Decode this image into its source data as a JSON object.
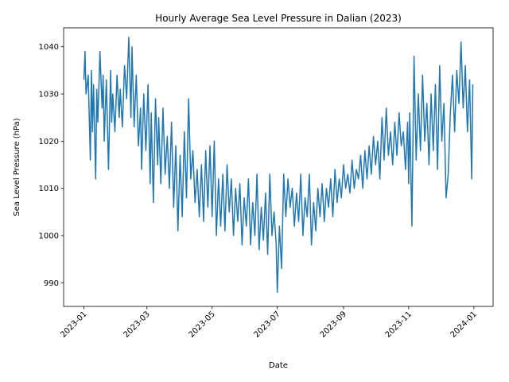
{
  "chart_data": {
    "type": "line",
    "title": "Hourly Average Sea Level Pressure in Dalian (2023)",
    "xlabel": "Date",
    "ylabel": "Sea Level Pressure (hPa)",
    "xlim": [
      "2022-12-13",
      "2024-01-19"
    ],
    "ylim": [
      985,
      1044
    ],
    "grid": false,
    "x_ticks": [
      "2023-01",
      "2023-03",
      "2023-05",
      "2023-07",
      "2023-09",
      "2023-11",
      "2024-01"
    ],
    "y_ticks": [
      990,
      1000,
      1010,
      1020,
      1030,
      1040
    ],
    "line_color": "#1f77b4",
    "series": [
      {
        "x": [
          "2023-01-01",
          "2023-01-02",
          "2023-01-03",
          "2023-01-05",
          "2023-01-07",
          "2023-01-08",
          "2023-01-09",
          "2023-01-10",
          "2023-01-12",
          "2023-01-13",
          "2023-01-14",
          "2023-01-16",
          "2023-01-18",
          "2023-01-19",
          "2023-01-20",
          "2023-01-22",
          "2023-01-24",
          "2023-01-26",
          "2023-01-27",
          "2023-01-28",
          "2023-01-30",
          "2023-02-01",
          "2023-02-03",
          "2023-02-04",
          "2023-02-06",
          "2023-02-08",
          "2023-02-10",
          "2023-02-12",
          "2023-02-14",
          "2023-02-15",
          "2023-02-17",
          "2023-02-19",
          "2023-02-21",
          "2023-02-23",
          "2023-02-24",
          "2023-02-26",
          "2023-02-28",
          "2023-03-02",
          "2023-03-04",
          "2023-03-05",
          "2023-03-07",
          "2023-03-09",
          "2023-03-11",
          "2023-03-12",
          "2023-03-14",
          "2023-03-16",
          "2023-03-18",
          "2023-03-20",
          "2023-03-22",
          "2023-03-24",
          "2023-03-26",
          "2023-03-28",
          "2023-03-30",
          "2023-04-01",
          "2023-04-03",
          "2023-04-05",
          "2023-04-07",
          "2023-04-09",
          "2023-04-11",
          "2023-04-13",
          "2023-04-15",
          "2023-04-17",
          "2023-04-19",
          "2023-04-21",
          "2023-04-23",
          "2023-04-25",
          "2023-04-27",
          "2023-04-29",
          "2023-05-01",
          "2023-05-03",
          "2023-05-05",
          "2023-05-07",
          "2023-05-09",
          "2023-05-11",
          "2023-05-13",
          "2023-05-15",
          "2023-05-17",
          "2023-05-19",
          "2023-05-21",
          "2023-05-23",
          "2023-05-25",
          "2023-05-27",
          "2023-05-29",
          "2023-05-31",
          "2023-06-02",
          "2023-06-04",
          "2023-06-06",
          "2023-06-08",
          "2023-06-10",
          "2023-06-12",
          "2023-06-14",
          "2023-06-16",
          "2023-06-18",
          "2023-06-20",
          "2023-06-22",
          "2023-06-24",
          "2023-06-26",
          "2023-06-28",
          "2023-06-30",
          "2023-07-01",
          "2023-07-03",
          "2023-07-05",
          "2023-07-07",
          "2023-07-09",
          "2023-07-11",
          "2023-07-13",
          "2023-07-15",
          "2023-07-17",
          "2023-07-19",
          "2023-07-21",
          "2023-07-23",
          "2023-07-25",
          "2023-07-27",
          "2023-07-29",
          "2023-07-31",
          "2023-08-02",
          "2023-08-04",
          "2023-08-06",
          "2023-08-08",
          "2023-08-10",
          "2023-08-12",
          "2023-08-14",
          "2023-08-16",
          "2023-08-18",
          "2023-08-20",
          "2023-08-22",
          "2023-08-24",
          "2023-08-26",
          "2023-08-28",
          "2023-08-30",
          "2023-09-01",
          "2023-09-03",
          "2023-09-05",
          "2023-09-07",
          "2023-09-09",
          "2023-09-11",
          "2023-09-13",
          "2023-09-15",
          "2023-09-17",
          "2023-09-19",
          "2023-09-21",
          "2023-09-23",
          "2023-09-25",
          "2023-09-27",
          "2023-09-29",
          "2023-10-01",
          "2023-10-03",
          "2023-10-05",
          "2023-10-07",
          "2023-10-09",
          "2023-10-11",
          "2023-10-13",
          "2023-10-15",
          "2023-10-17",
          "2023-10-19",
          "2023-10-21",
          "2023-10-23",
          "2023-10-25",
          "2023-10-27",
          "2023-10-29",
          "2023-10-31",
          "2023-11-01",
          "2023-11-02",
          "2023-11-04",
          "2023-11-06",
          "2023-11-08",
          "2023-11-10",
          "2023-11-12",
          "2023-11-14",
          "2023-11-16",
          "2023-11-18",
          "2023-11-20",
          "2023-11-22",
          "2023-11-24",
          "2023-11-26",
          "2023-11-28",
          "2023-11-30",
          "2023-12-02",
          "2023-12-04",
          "2023-12-06",
          "2023-12-08",
          "2023-12-10",
          "2023-12-12",
          "2023-12-14",
          "2023-12-16",
          "2023-12-18",
          "2023-12-20",
          "2023-12-22",
          "2023-12-24",
          "2023-12-26",
          "2023-12-28",
          "2023-12-30",
          "2023-12-31"
        ],
        "values": [
          1033,
          1039,
          1030,
          1034,
          1016,
          1035,
          1022,
          1032,
          1012,
          1031,
          1024,
          1039,
          1027,
          1034,
          1020,
          1033,
          1014,
          1035,
          1024,
          1030,
          1022,
          1034,
          1025,
          1031,
          1023,
          1036,
          1029,
          1042,
          1025,
          1040,
          1023,
          1034,
          1019,
          1027,
          1014,
          1030,
          1018,
          1032,
          1011,
          1026,
          1007,
          1029,
          1015,
          1025,
          1011,
          1027,
          1013,
          1021,
          1010,
          1024,
          1006,
          1019,
          1001,
          1017,
          1004,
          1022,
          1008,
          1029,
          1012,
          1018,
          1007,
          1014,
          1004,
          1015,
          1003,
          1018,
          1006,
          1019,
          1004,
          1020,
          1000,
          1012,
          1002,
          1013,
          1001,
          1015,
          1005,
          1012,
          1000,
          1010,
          1003,
          1011,
          998,
          1008,
          1002,
          1012,
          998,
          1007,
          1000,
          1013,
          997,
          1006,
          999,
          1009,
          996,
          1013,
          1000,
          1005,
          998,
          988,
          1002,
          993,
          1013,
          1004,
          1012,
          1006,
          1010,
          1002,
          1009,
          1003,
          1013,
          1000,
          1008,
          1004,
          1013,
          998,
          1007,
          1001,
          1010,
          1004,
          1011,
          1003,
          1010,
          1006,
          1012,
          1004,
          1014,
          1007,
          1012,
          1008,
          1015,
          1010,
          1013,
          1009,
          1016,
          1010,
          1014,
          1012,
          1017,
          1010,
          1018,
          1012,
          1019,
          1013,
          1021,
          1015,
          1020,
          1012,
          1025,
          1016,
          1027,
          1017,
          1022,
          1015,
          1024,
          1017,
          1026,
          1019,
          1022,
          1014,
          1024,
          1011,
          1026,
          1002,
          1038,
          1016,
          1030,
          1018,
          1034,
          1020,
          1028,
          1015,
          1030,
          1018,
          1032,
          1014,
          1036,
          1020,
          1028,
          1008,
          1013,
          1026,
          1034,
          1022,
          1035,
          1028,
          1041,
          1027,
          1036,
          1022,
          1033,
          1012,
          1032
        ]
      }
    ]
  }
}
